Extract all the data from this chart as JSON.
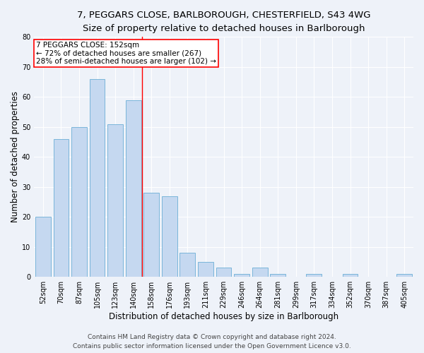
{
  "title_line1": "7, PEGGARS CLOSE, BARLBOROUGH, CHESTERFIELD, S43 4WG",
  "title_line2": "Size of property relative to detached houses in Barlborough",
  "xlabel": "Distribution of detached houses by size in Barlborough",
  "ylabel": "Number of detached properties",
  "categories": [
    "52sqm",
    "70sqm",
    "87sqm",
    "105sqm",
    "123sqm",
    "140sqm",
    "158sqm",
    "176sqm",
    "193sqm",
    "211sqm",
    "229sqm",
    "246sqm",
    "264sqm",
    "281sqm",
    "299sqm",
    "317sqm",
    "334sqm",
    "352sqm",
    "370sqm",
    "387sqm",
    "405sqm"
  ],
  "values": [
    20,
    46,
    50,
    66,
    51,
    59,
    28,
    27,
    8,
    5,
    3,
    1,
    3,
    1,
    0,
    1,
    0,
    1,
    0,
    0,
    1
  ],
  "bar_color": "#c5d8f0",
  "bar_edge_color": "#6baed6",
  "vline_x_index": 5.5,
  "vline_color": "red",
  "annotation_line1": "7 PEGGARS CLOSE: 152sqm",
  "annotation_line2": "← 72% of detached houses are smaller (267)",
  "annotation_line3": "28% of semi-detached houses are larger (102) →",
  "annotation_box_color": "white",
  "annotation_box_edge_color": "red",
  "ylim": [
    0,
    80
  ],
  "yticks": [
    0,
    10,
    20,
    30,
    40,
    50,
    60,
    70,
    80
  ],
  "footer_line1": "Contains HM Land Registry data © Crown copyright and database right 2024.",
  "footer_line2": "Contains public sector information licensed under the Open Government Licence v3.0.",
  "background_color": "#eef2f9",
  "grid_color": "white",
  "title_fontsize": 9.5,
  "subtitle_fontsize": 8.5,
  "axis_label_fontsize": 8.5,
  "tick_fontsize": 7,
  "annotation_fontsize": 7.5,
  "footer_fontsize": 6.5
}
